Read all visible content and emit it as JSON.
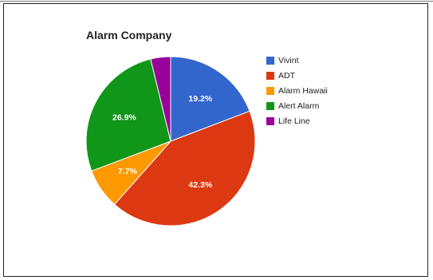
{
  "chart_data": {
    "type": "pie",
    "title": "Alarm Company",
    "legend_position": "right",
    "slices": [
      {
        "label": "Vivint",
        "value": 19.2,
        "display": "19.2%",
        "color": "#3366cc"
      },
      {
        "label": "ADT",
        "value": 42.3,
        "display": "42.3%",
        "color": "#dc3912"
      },
      {
        "label": "Alarm Hawaii",
        "value": 7.7,
        "display": "7.7%",
        "color": "#ff9900"
      },
      {
        "label": "Alert Alarm",
        "value": 26.9,
        "display": "26.9%",
        "color": "#109618"
      },
      {
        "label": "Life Line",
        "value": 3.8,
        "display": "",
        "color": "#990099"
      }
    ]
  }
}
